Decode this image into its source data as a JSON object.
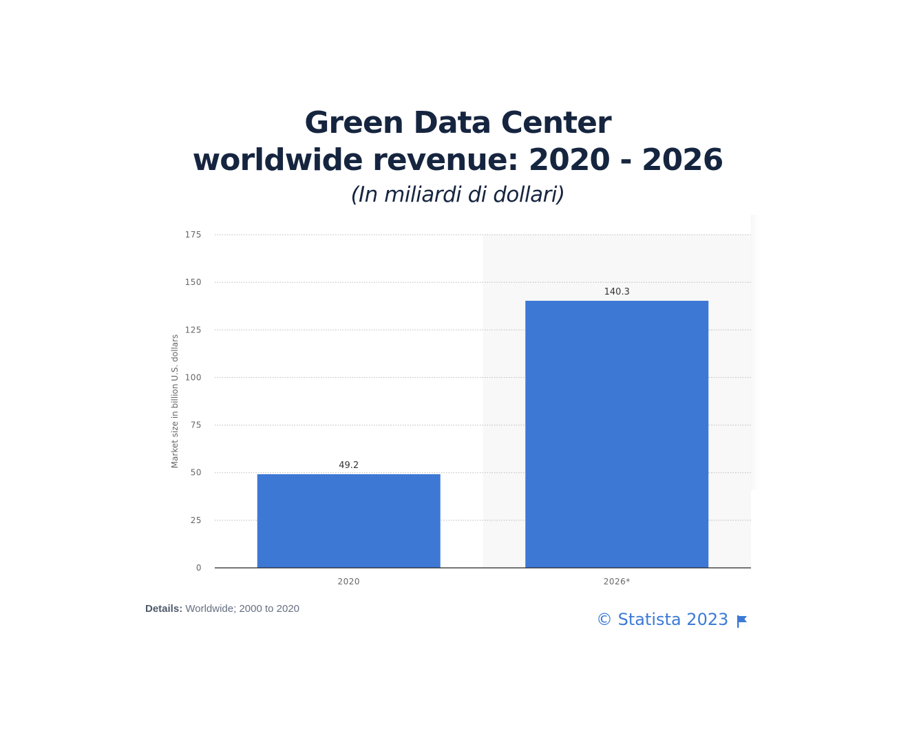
{
  "title": {
    "line1": "Green Data Center",
    "line2": "worldwide revenue: 2020 - 2026",
    "subtitle": "(In miliardi di dollari)"
  },
  "chart_data": {
    "type": "bar",
    "categories": [
      "2020",
      "2026*"
    ],
    "values": [
      49.2,
      140.3
    ],
    "value_labels": [
      "49.2",
      "140.3"
    ],
    "ylabel": "Market size in billion U.S. dollars",
    "xlabel": "",
    "ylim": [
      0,
      175
    ],
    "yticks": [
      0,
      25,
      50,
      75,
      100,
      125,
      150,
      175
    ],
    "grid": true,
    "bar_color": "#3d78d5",
    "forecast_shading": "2026*"
  },
  "footer": {
    "details_key": "Details:",
    "details_value": "Worldwide; 2000 to 2020",
    "copyright": "© Statista 2023",
    "flag_icon": "flag-icon"
  },
  "colors": {
    "title": "#16253f",
    "accent": "#3d7ad6"
  }
}
